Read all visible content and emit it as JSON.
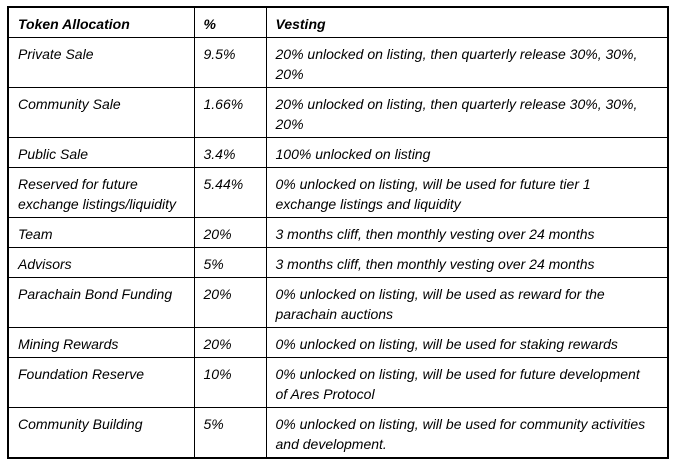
{
  "table": {
    "columns": {
      "allocation": "Token Allocation",
      "percent": "%",
      "vesting": "Vesting"
    },
    "rows": [
      {
        "allocation": "Private Sale",
        "percent": "9.5%",
        "vesting": "20% unlocked on listing, then quarterly release 30%, 30%,\n20%"
      },
      {
        "allocation": "Community Sale",
        "percent": "1.66%",
        "vesting": "20% unlocked on listing, then quarterly release 30%, 30%,\n20%"
      },
      {
        "allocation": "Public Sale",
        "percent": "3.4%",
        "vesting": "100% unlocked on listing"
      },
      {
        "allocation": "Reserved for future\nexchange listings/liquidity",
        "percent": "5.44%",
        "vesting": "0% unlocked on listing, will be used for future tier 1\nexchange listings and liquidity"
      },
      {
        "allocation": "Team",
        "percent": "20%",
        "vesting": "3 months cliff, then monthly vesting over 24 months"
      },
      {
        "allocation": "Advisors",
        "percent": "5%",
        "vesting": "3 months cliff, then monthly vesting over 24 months"
      },
      {
        "allocation": "Parachain Bond Funding",
        "percent": "20%",
        "vesting": "0% unlocked on listing, will be used as reward for the\nparachain auctions"
      },
      {
        "allocation": "Mining Rewards",
        "percent": "20%",
        "vesting": "0% unlocked on listing, will be used for staking rewards"
      },
      {
        "allocation": "Foundation Reserve",
        "percent": "10%",
        "vesting": "0% unlocked on listing, will be used for future development\nof Ares Protocol"
      },
      {
        "allocation": "Community Building",
        "percent": "5%",
        "vesting": "0% unlocked on listing, will be used for community activities\nand development."
      }
    ],
    "colors": {
      "border": "#000000",
      "text": "#000000",
      "background": "#ffffff"
    }
  }
}
